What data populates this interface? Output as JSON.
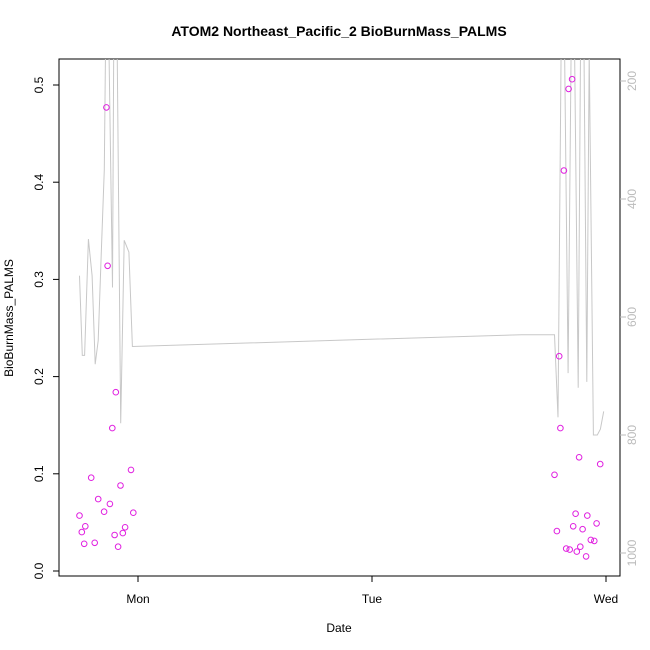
{
  "chart_data": {
    "type": "scatter",
    "title": "ATOM2 Northeast_Pacific_2 BioBurnMass_PALMS",
    "xlabel": "Date",
    "ylabel": "BioBurnMass_PALMS",
    "x_ticks": [
      "Mon",
      "Tue",
      "Wed"
    ],
    "ylim": [
      0,
      0.52
    ],
    "y_ticks": [
      "0.0",
      "0.1",
      "0.2",
      "0.3",
      "0.4",
      "0.5"
    ],
    "y2_ticks": [
      "200",
      "400",
      "600",
      "800",
      "1000"
    ],
    "y2_reversed": true,
    "grid": false,
    "colors": {
      "points": "#e020e0",
      "line": "#c8c8c8",
      "axis": "#000000",
      "secondary_axis": "#bbbbbb"
    },
    "series": [
      {
        "kind": "points",
        "axis": "left",
        "points": [
          [
            -0.25,
            0.057
          ],
          [
            -0.24,
            0.04
          ],
          [
            -0.23,
            0.028
          ],
          [
            -0.225,
            0.046
          ],
          [
            -0.2,
            0.096
          ],
          [
            -0.185,
            0.029
          ],
          [
            -0.17,
            0.074
          ],
          [
            -0.145,
            0.061
          ],
          [
            -0.135,
            0.477
          ],
          [
            -0.13,
            0.314
          ],
          [
            -0.12,
            0.069
          ],
          [
            -0.11,
            0.147
          ],
          [
            -0.1,
            0.037
          ],
          [
            -0.095,
            0.184
          ],
          [
            -0.085,
            0.025
          ],
          [
            -0.075,
            0.088
          ],
          [
            -0.065,
            0.039
          ],
          [
            -0.055,
            0.045
          ],
          [
            -0.03,
            0.104
          ],
          [
            -0.02,
            0.06
          ],
          [
            1.78,
            0.099
          ],
          [
            1.79,
            0.041
          ],
          [
            1.8,
            0.221
          ],
          [
            1.805,
            0.147
          ],
          [
            1.82,
            0.412
          ],
          [
            1.83,
            0.023
          ],
          [
            1.84,
            0.496
          ],
          [
            1.845,
            0.022
          ],
          [
            1.855,
            0.506
          ],
          [
            1.86,
            0.046
          ],
          [
            1.87,
            0.059
          ],
          [
            1.875,
            0.02
          ],
          [
            1.885,
            0.117
          ],
          [
            1.89,
            0.025
          ],
          [
            1.9,
            0.043
          ],
          [
            1.915,
            0.015
          ],
          [
            1.92,
            0.057
          ],
          [
            1.935,
            0.032
          ],
          [
            1.95,
            0.031
          ],
          [
            1.96,
            0.049
          ],
          [
            1.975,
            0.11
          ]
        ]
      },
      {
        "kind": "line",
        "axis": "right",
        "points": [
          [
            -0.25,
            530
          ],
          [
            -0.238,
            665
          ],
          [
            -0.228,
            665
          ],
          [
            -0.212,
            468
          ],
          [
            -0.196,
            530
          ],
          [
            -0.183,
            680
          ],
          [
            -0.17,
            640
          ],
          [
            -0.157,
            490
          ],
          [
            -0.144,
            350
          ],
          [
            -0.139,
            150
          ],
          [
            -0.124,
            150
          ],
          [
            -0.109,
            550
          ],
          [
            -0.104,
            150
          ],
          [
            -0.089,
            150
          ],
          [
            -0.074,
            780
          ],
          [
            -0.059,
            470
          ],
          [
            -0.039,
            490
          ],
          [
            -0.024,
            650
          ],
          [
            1.64,
            630
          ],
          [
            1.78,
            630
          ],
          [
            1.795,
            770
          ],
          [
            1.808,
            150
          ],
          [
            1.823,
            150
          ],
          [
            1.838,
            695
          ],
          [
            1.851,
            150
          ],
          [
            1.866,
            150
          ],
          [
            1.881,
            720
          ],
          [
            1.891,
            150
          ],
          [
            1.906,
            150
          ],
          [
            1.918,
            710
          ],
          [
            1.928,
            150
          ],
          [
            1.946,
            800
          ],
          [
            1.963,
            800
          ],
          [
            1.976,
            790
          ],
          [
            1.99,
            760
          ]
        ]
      }
    ]
  }
}
